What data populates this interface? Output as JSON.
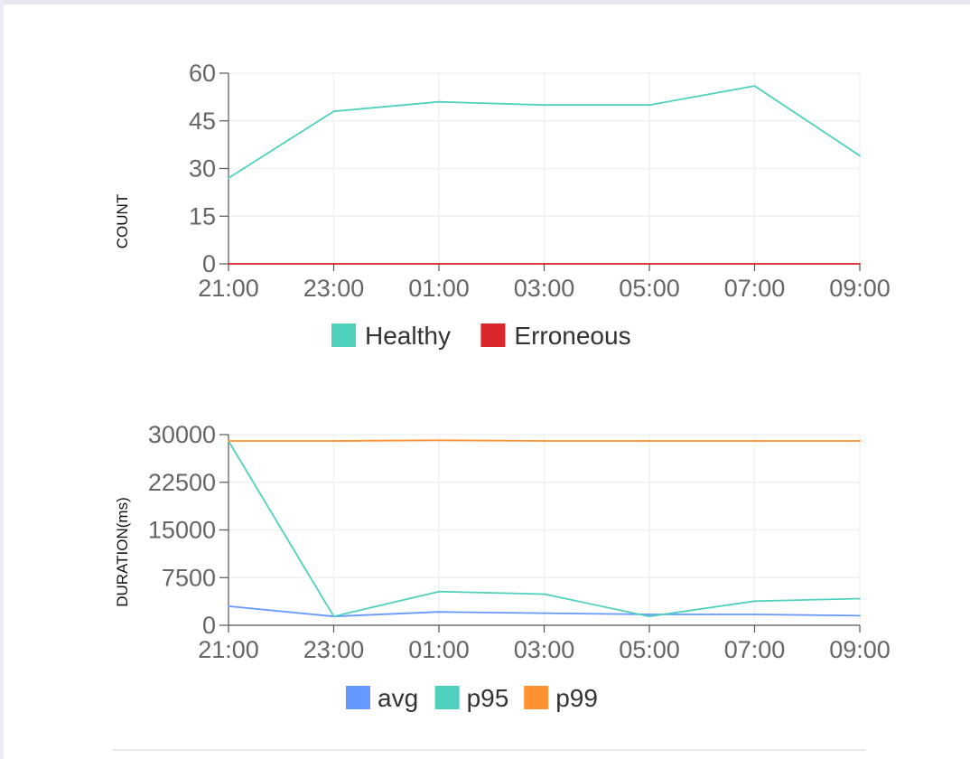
{
  "chart_data": [
    {
      "type": "line",
      "title": "",
      "xlabel": "",
      "ylabel": "COUNT",
      "x": [
        "21:00",
        "21:30",
        "22:00",
        "22:30",
        "23:00",
        "23:30",
        "00:00",
        "00:30",
        "01:00",
        "01:30",
        "02:00",
        "02:30",
        "03:00",
        "03:30",
        "04:00",
        "04:30",
        "05:00",
        "05:30",
        "06:00",
        "06:30",
        "07:00",
        "07:30",
        "08:00",
        "08:30",
        "09:00"
      ],
      "xticks": [
        "21:00",
        "23:00",
        "01:00",
        "03:00",
        "05:00",
        "07:00",
        "09:00"
      ],
      "ylim": [
        0,
        60
      ],
      "yticks": [
        "0",
        "15",
        "30",
        "45",
        "60"
      ],
      "grid": true,
      "legend_position": "bottom-center",
      "series": [
        {
          "name": "Healthy",
          "color": "#4fd1bd",
          "values": [
            27,
            null,
            null,
            null,
            48,
            null,
            null,
            null,
            51,
            null,
            null,
            null,
            50,
            null,
            null,
            null,
            50,
            null,
            null,
            null,
            56,
            null,
            null,
            null,
            34
          ]
        },
        {
          "name": "Erroneous",
          "color": "#d9272d",
          "values": [
            0,
            null,
            null,
            null,
            0,
            null,
            null,
            null,
            0,
            null,
            null,
            null,
            0,
            null,
            null,
            null,
            0,
            null,
            null,
            null,
            0,
            null,
            null,
            null,
            0
          ]
        }
      ]
    },
    {
      "type": "line",
      "title": "",
      "xlabel": "",
      "ylabel": "DURATION(ms)",
      "x": [
        "21:00",
        "21:30",
        "22:00",
        "22:30",
        "23:00",
        "23:30",
        "00:00",
        "00:30",
        "01:00",
        "01:30",
        "02:00",
        "02:30",
        "03:00",
        "03:30",
        "04:00",
        "04:30",
        "05:00",
        "05:30",
        "06:00",
        "06:30",
        "07:00",
        "07:30",
        "08:00",
        "08:30",
        "09:00"
      ],
      "xticks": [
        "21:00",
        "23:00",
        "01:00",
        "03:00",
        "05:00",
        "07:00",
        "09:00"
      ],
      "ylim": [
        0,
        30000
      ],
      "yticks": [
        "0",
        "7500",
        "15000",
        "22500",
        "30000"
      ],
      "grid": true,
      "legend_position": "bottom-center",
      "series": [
        {
          "name": "avg",
          "color": "#6699ff",
          "values": [
            3000,
            null,
            null,
            null,
            1400,
            null,
            null,
            null,
            2100,
            null,
            null,
            null,
            1900,
            null,
            null,
            null,
            1700,
            null,
            null,
            null,
            1700,
            null,
            null,
            null,
            1500
          ]
        },
        {
          "name": "p95",
          "color": "#4fd1bd",
          "values": [
            29000,
            null,
            null,
            null,
            1400,
            null,
            null,
            null,
            5300,
            null,
            null,
            null,
            4900,
            null,
            null,
            null,
            1400,
            null,
            null,
            null,
            3800,
            null,
            null,
            null,
            4200
          ]
        },
        {
          "name": "p99",
          "color": "#ff9130",
          "values": [
            29000,
            null,
            null,
            null,
            29000,
            null,
            null,
            null,
            29100,
            null,
            null,
            null,
            29000,
            null,
            null,
            null,
            29000,
            null,
            null,
            null,
            29000,
            null,
            null,
            null,
            29000
          ]
        }
      ]
    }
  ]
}
